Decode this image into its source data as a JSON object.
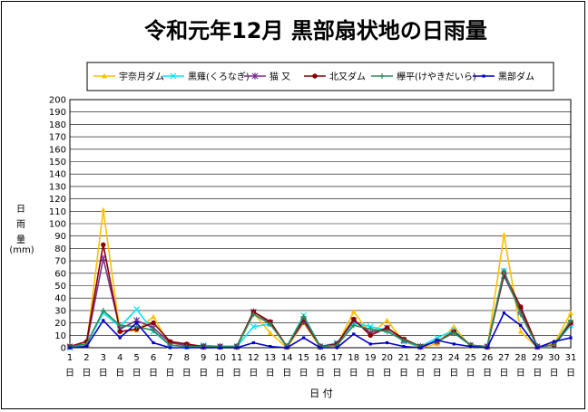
{
  "chart_data": {
    "type": "line",
    "title": "令和元年12月 黒部扇状地の日雨量",
    "xlabel": "日 付",
    "ylabel_chars": [
      "日",
      "雨",
      "量"
    ],
    "ylabel_unit": "(mm)",
    "ylim": [
      0,
      200
    ],
    "ytick_step": 10,
    "grid": true,
    "legend_position": "top",
    "x_day_suffix": "日",
    "categories": [
      "1",
      "2",
      "3",
      "4",
      "5",
      "6",
      "7",
      "8",
      "9",
      "10",
      "11",
      "12",
      "13",
      "14",
      "15",
      "16",
      "17",
      "18",
      "19",
      "20",
      "21",
      "22",
      "23",
      "24",
      "25",
      "26",
      "27",
      "28",
      "29",
      "30",
      "31"
    ],
    "series": [
      {
        "name": "宇奈月ダム",
        "color": "#FFC000",
        "marker": "triangle",
        "values": [
          0,
          2,
          111,
          13,
          14,
          25,
          2,
          2,
          0,
          0,
          0,
          28,
          12,
          0,
          20,
          0,
          2,
          29,
          11,
          22,
          5,
          0,
          3,
          17,
          1,
          0,
          91,
          13,
          0,
          3,
          28
        ]
      },
      {
        "name": "黒薙(くろなぎ)",
        "color": "#00E5FF",
        "marker": "x",
        "values": [
          0,
          3,
          28,
          17,
          31,
          13,
          2,
          1,
          2,
          1,
          1,
          17,
          19,
          1,
          26,
          1,
          4,
          20,
          17,
          14,
          5,
          1,
          8,
          14,
          2,
          1,
          62,
          28,
          1,
          2,
          18
        ]
      },
      {
        "name": "猫 又",
        "color": "#7A2F8F",
        "marker": "star",
        "values": [
          1,
          3,
          72,
          15,
          22,
          16,
          4,
          2,
          1,
          1,
          1,
          29,
          20,
          1,
          21,
          1,
          3,
          22,
          12,
          16,
          6,
          1,
          5,
          12,
          2,
          1,
          58,
          30,
          1,
          2,
          20
        ]
      },
      {
        "name": "北又ダム",
        "color": "#8B0000",
        "marker": "circle",
        "values": [
          1,
          5,
          83,
          13,
          15,
          20,
          5,
          3,
          1,
          1,
          1,
          29,
          21,
          1,
          23,
          1,
          3,
          23,
          10,
          16,
          7,
          1,
          5,
          13,
          2,
          1,
          60,
          33,
          1,
          2,
          20
        ]
      },
      {
        "name": "欅平(けやきだいら)",
        "color": "#2E8B57",
        "marker": "plus",
        "values": [
          1,
          3,
          30,
          18,
          17,
          14,
          2,
          1,
          1,
          1,
          1,
          27,
          19,
          1,
          25,
          1,
          2,
          18,
          15,
          13,
          6,
          1,
          5,
          12,
          2,
          1,
          62,
          27,
          1,
          2,
          22
        ]
      },
      {
        "name": "黒部ダム",
        "color": "#0000CC",
        "marker": "dot",
        "values": [
          0,
          1,
          22,
          8,
          20,
          4,
          0,
          0,
          0,
          0,
          0,
          4,
          1,
          0,
          8,
          0,
          0,
          11,
          3,
          4,
          1,
          0,
          6,
          3,
          1,
          0,
          28,
          18,
          0,
          5,
          8
        ]
      }
    ]
  }
}
